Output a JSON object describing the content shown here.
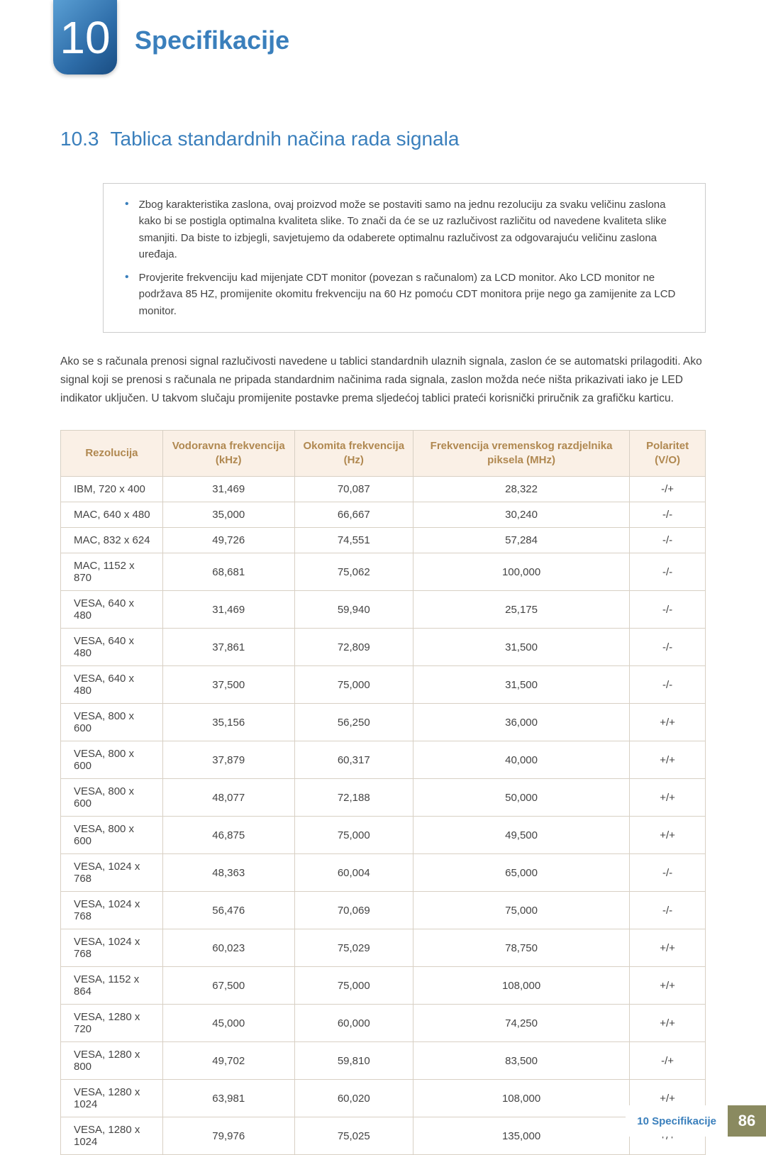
{
  "header": {
    "chapter_number": "10",
    "chapter_title": "Specifikacije"
  },
  "section": {
    "number": "10.3",
    "title": "Tablica standardnih načina rada signala"
  },
  "bullets": [
    "Zbog karakteristika zaslona, ovaj proizvod može se postaviti samo na jednu rezoluciju za svaku veličinu zaslona kako bi se postigla optimalna kvaliteta slike. To znači da će se uz razlučivost različitu od navedene kvaliteta slike smanjiti. Da biste to izbjegli, savjetujemo da odaberete optimalnu razlučivost za odgovarajuću veličinu zaslona uređaja.",
    "Provjerite frekvenciju kad mijenjate CDT monitor (povezan s računalom) za LCD monitor. Ako LCD monitor ne podržava 85 HZ, promijenite okomitu frekvenciju na 60 Hz pomoću CDT monitora prije nego ga zamijenite za LCD monitor."
  ],
  "body_paragraph": "Ako se s računala prenosi signal razlučivosti navedene u tablici standardnih ulaznih signala, zaslon će se automatski prilagoditi. Ako signal koji se prenosi s računala ne pripada standardnim načinima rada signala, zaslon možda neće ništa prikazivati iako je LED indikator uključen. U takvom slučaju promijenite postavke prema sljedećoj tablici prateći korisnički priručnik za grafičku karticu.",
  "table": {
    "headers": [
      "Rezolucija",
      "Vodoravna frekvencija (kHz)",
      "Okomita frekvencija (Hz)",
      "Frekvencija vremenskog razdjelnika piksela (MHz)",
      "Polaritet (V/O)"
    ],
    "rows": [
      [
        "IBM, 720 x 400",
        "31,469",
        "70,087",
        "28,322",
        "-/+"
      ],
      [
        "MAC, 640 x 480",
        "35,000",
        "66,667",
        "30,240",
        "-/-"
      ],
      [
        "MAC, 832 x 624",
        "49,726",
        "74,551",
        "57,284",
        "-/-"
      ],
      [
        "MAC, 1152 x 870",
        "68,681",
        "75,062",
        "100,000",
        "-/-"
      ],
      [
        "VESA, 640 x 480",
        "31,469",
        "59,940",
        "25,175",
        "-/-"
      ],
      [
        "VESA, 640 x 480",
        "37,861",
        "72,809",
        "31,500",
        "-/-"
      ],
      [
        "VESA, 640 x 480",
        "37,500",
        "75,000",
        "31,500",
        "-/-"
      ],
      [
        "VESA, 800 x 600",
        "35,156",
        "56,250",
        "36,000",
        "+/+"
      ],
      [
        "VESA, 800 x 600",
        "37,879",
        "60,317",
        "40,000",
        "+/+"
      ],
      [
        "VESA, 800 x 600",
        "48,077",
        "72,188",
        "50,000",
        "+/+"
      ],
      [
        "VESA, 800 x 600",
        "46,875",
        "75,000",
        "49,500",
        "+/+"
      ],
      [
        "VESA, 1024 x 768",
        "48,363",
        "60,004",
        "65,000",
        "-/-"
      ],
      [
        "VESA, 1024 x 768",
        "56,476",
        "70,069",
        "75,000",
        "-/-"
      ],
      [
        "VESA, 1024 x 768",
        "60,023",
        "75,029",
        "78,750",
        "+/+"
      ],
      [
        "VESA, 1152 x 864",
        "67,500",
        "75,000",
        "108,000",
        "+/+"
      ],
      [
        "VESA, 1280 x 720",
        "45,000",
        "60,000",
        "74,250",
        "+/+"
      ],
      [
        "VESA, 1280 x 800",
        "49,702",
        "59,810",
        "83,500",
        "-/+"
      ],
      [
        "VESA, 1280 x 1024",
        "63,981",
        "60,020",
        "108,000",
        "+/+"
      ],
      [
        "VESA, 1280 x 1024",
        "79,976",
        "75,025",
        "135,000",
        "+/+"
      ]
    ]
  },
  "footer": {
    "label": "10 Specifikacije",
    "page": "86"
  },
  "colors": {
    "accent_blue": "#3a7fbc",
    "header_bg": "#faf0e6",
    "header_text": "#b08850",
    "border": "#d8d0c4",
    "footer_bg": "#8a8a60"
  }
}
